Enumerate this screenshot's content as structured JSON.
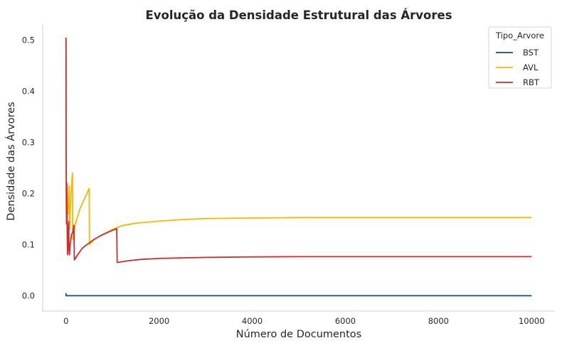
{
  "chart_data": {
    "type": "line",
    "title": "Evolução da Densidade Estrutural das Árvores",
    "xlabel": "Número de Documentos",
    "ylabel": "Densidade das Árvores",
    "xlim": [
      -500,
      10500
    ],
    "ylim": [
      -0.03,
      0.53
    ],
    "xticks": [
      0,
      2000,
      4000,
      6000,
      8000,
      10000
    ],
    "xtick_labels": [
      "0",
      "2000",
      "4000",
      "6000",
      "8000",
      "10000"
    ],
    "yticks": [
      0.0,
      0.1,
      0.2,
      0.3,
      0.4,
      0.5
    ],
    "ytick_labels": [
      "0.0",
      "0.1",
      "0.2",
      "0.3",
      "0.4",
      "0.5"
    ],
    "grid": false,
    "legend": {
      "title": "Tipo_Arvore",
      "placement": "top-right"
    },
    "series": [
      {
        "name": "BST",
        "color": "#0d4a8f",
        "points": [
          [
            1,
            0.005
          ],
          [
            2,
            0.0
          ],
          [
            10,
            0.0
          ],
          [
            100,
            0.0
          ],
          [
            1000,
            0.0
          ],
          [
            5000,
            0.0
          ],
          [
            10000,
            0.0
          ]
        ]
      },
      {
        "name": "AVL",
        "color": "#f6b800",
        "points": [
          [
            1,
            0.5
          ],
          [
            3,
            0.25
          ],
          [
            5,
            0.24
          ],
          [
            8,
            0.2
          ],
          [
            12,
            0.17
          ],
          [
            16,
            0.15
          ],
          [
            20,
            0.22
          ],
          [
            30,
            0.16
          ],
          [
            40,
            0.19
          ],
          [
            50,
            0.16
          ],
          [
            60,
            0.2
          ],
          [
            70,
            0.215
          ],
          [
            75,
            0.13
          ],
          [
            90,
            0.16
          ],
          [
            110,
            0.2
          ],
          [
            130,
            0.23
          ],
          [
            140,
            0.24
          ],
          [
            145,
            0.11
          ],
          [
            200,
            0.14
          ],
          [
            300,
            0.17
          ],
          [
            400,
            0.19
          ],
          [
            500,
            0.21
          ],
          [
            505,
            0.1
          ],
          [
            600,
            0.11
          ],
          [
            800,
            0.12
          ],
          [
            1000,
            0.13
          ],
          [
            1200,
            0.137
          ],
          [
            1500,
            0.142
          ],
          [
            2000,
            0.146
          ],
          [
            2500,
            0.149
          ],
          [
            3000,
            0.151
          ],
          [
            4000,
            0.152
          ],
          [
            5000,
            0.153
          ],
          [
            6000,
            0.153
          ],
          [
            8000,
            0.153
          ],
          [
            10000,
            0.153
          ]
        ]
      },
      {
        "name": "RBT",
        "color": "#d22b2b",
        "points": [
          [
            1,
            0.505
          ],
          [
            3,
            0.3
          ],
          [
            5,
            0.26
          ],
          [
            8,
            0.18
          ],
          [
            12,
            0.14
          ],
          [
            16,
            0.22
          ],
          [
            20,
            0.17
          ],
          [
            25,
            0.14
          ],
          [
            30,
            0.1
          ],
          [
            35,
            0.08
          ],
          [
            40,
            0.12
          ],
          [
            50,
            0.13
          ],
          [
            60,
            0.145
          ],
          [
            65,
            0.09
          ],
          [
            75,
            0.08
          ],
          [
            90,
            0.1
          ],
          [
            120,
            0.12
          ],
          [
            150,
            0.125
          ],
          [
            170,
            0.138
          ],
          [
            180,
            0.07
          ],
          [
            250,
            0.08
          ],
          [
            350,
            0.093
          ],
          [
            450,
            0.1
          ],
          [
            600,
            0.11
          ],
          [
            750,
            0.118
          ],
          [
            900,
            0.124
          ],
          [
            1000,
            0.128
          ],
          [
            1090,
            0.131
          ],
          [
            1100,
            0.065
          ],
          [
            1300,
            0.068
          ],
          [
            1600,
            0.071
          ],
          [
            2000,
            0.073
          ],
          [
            2500,
            0.074
          ],
          [
            3000,
            0.075
          ],
          [
            4000,
            0.076
          ],
          [
            5000,
            0.0765
          ],
          [
            6000,
            0.0765
          ],
          [
            8000,
            0.0765
          ],
          [
            10000,
            0.0765
          ]
        ]
      }
    ]
  }
}
